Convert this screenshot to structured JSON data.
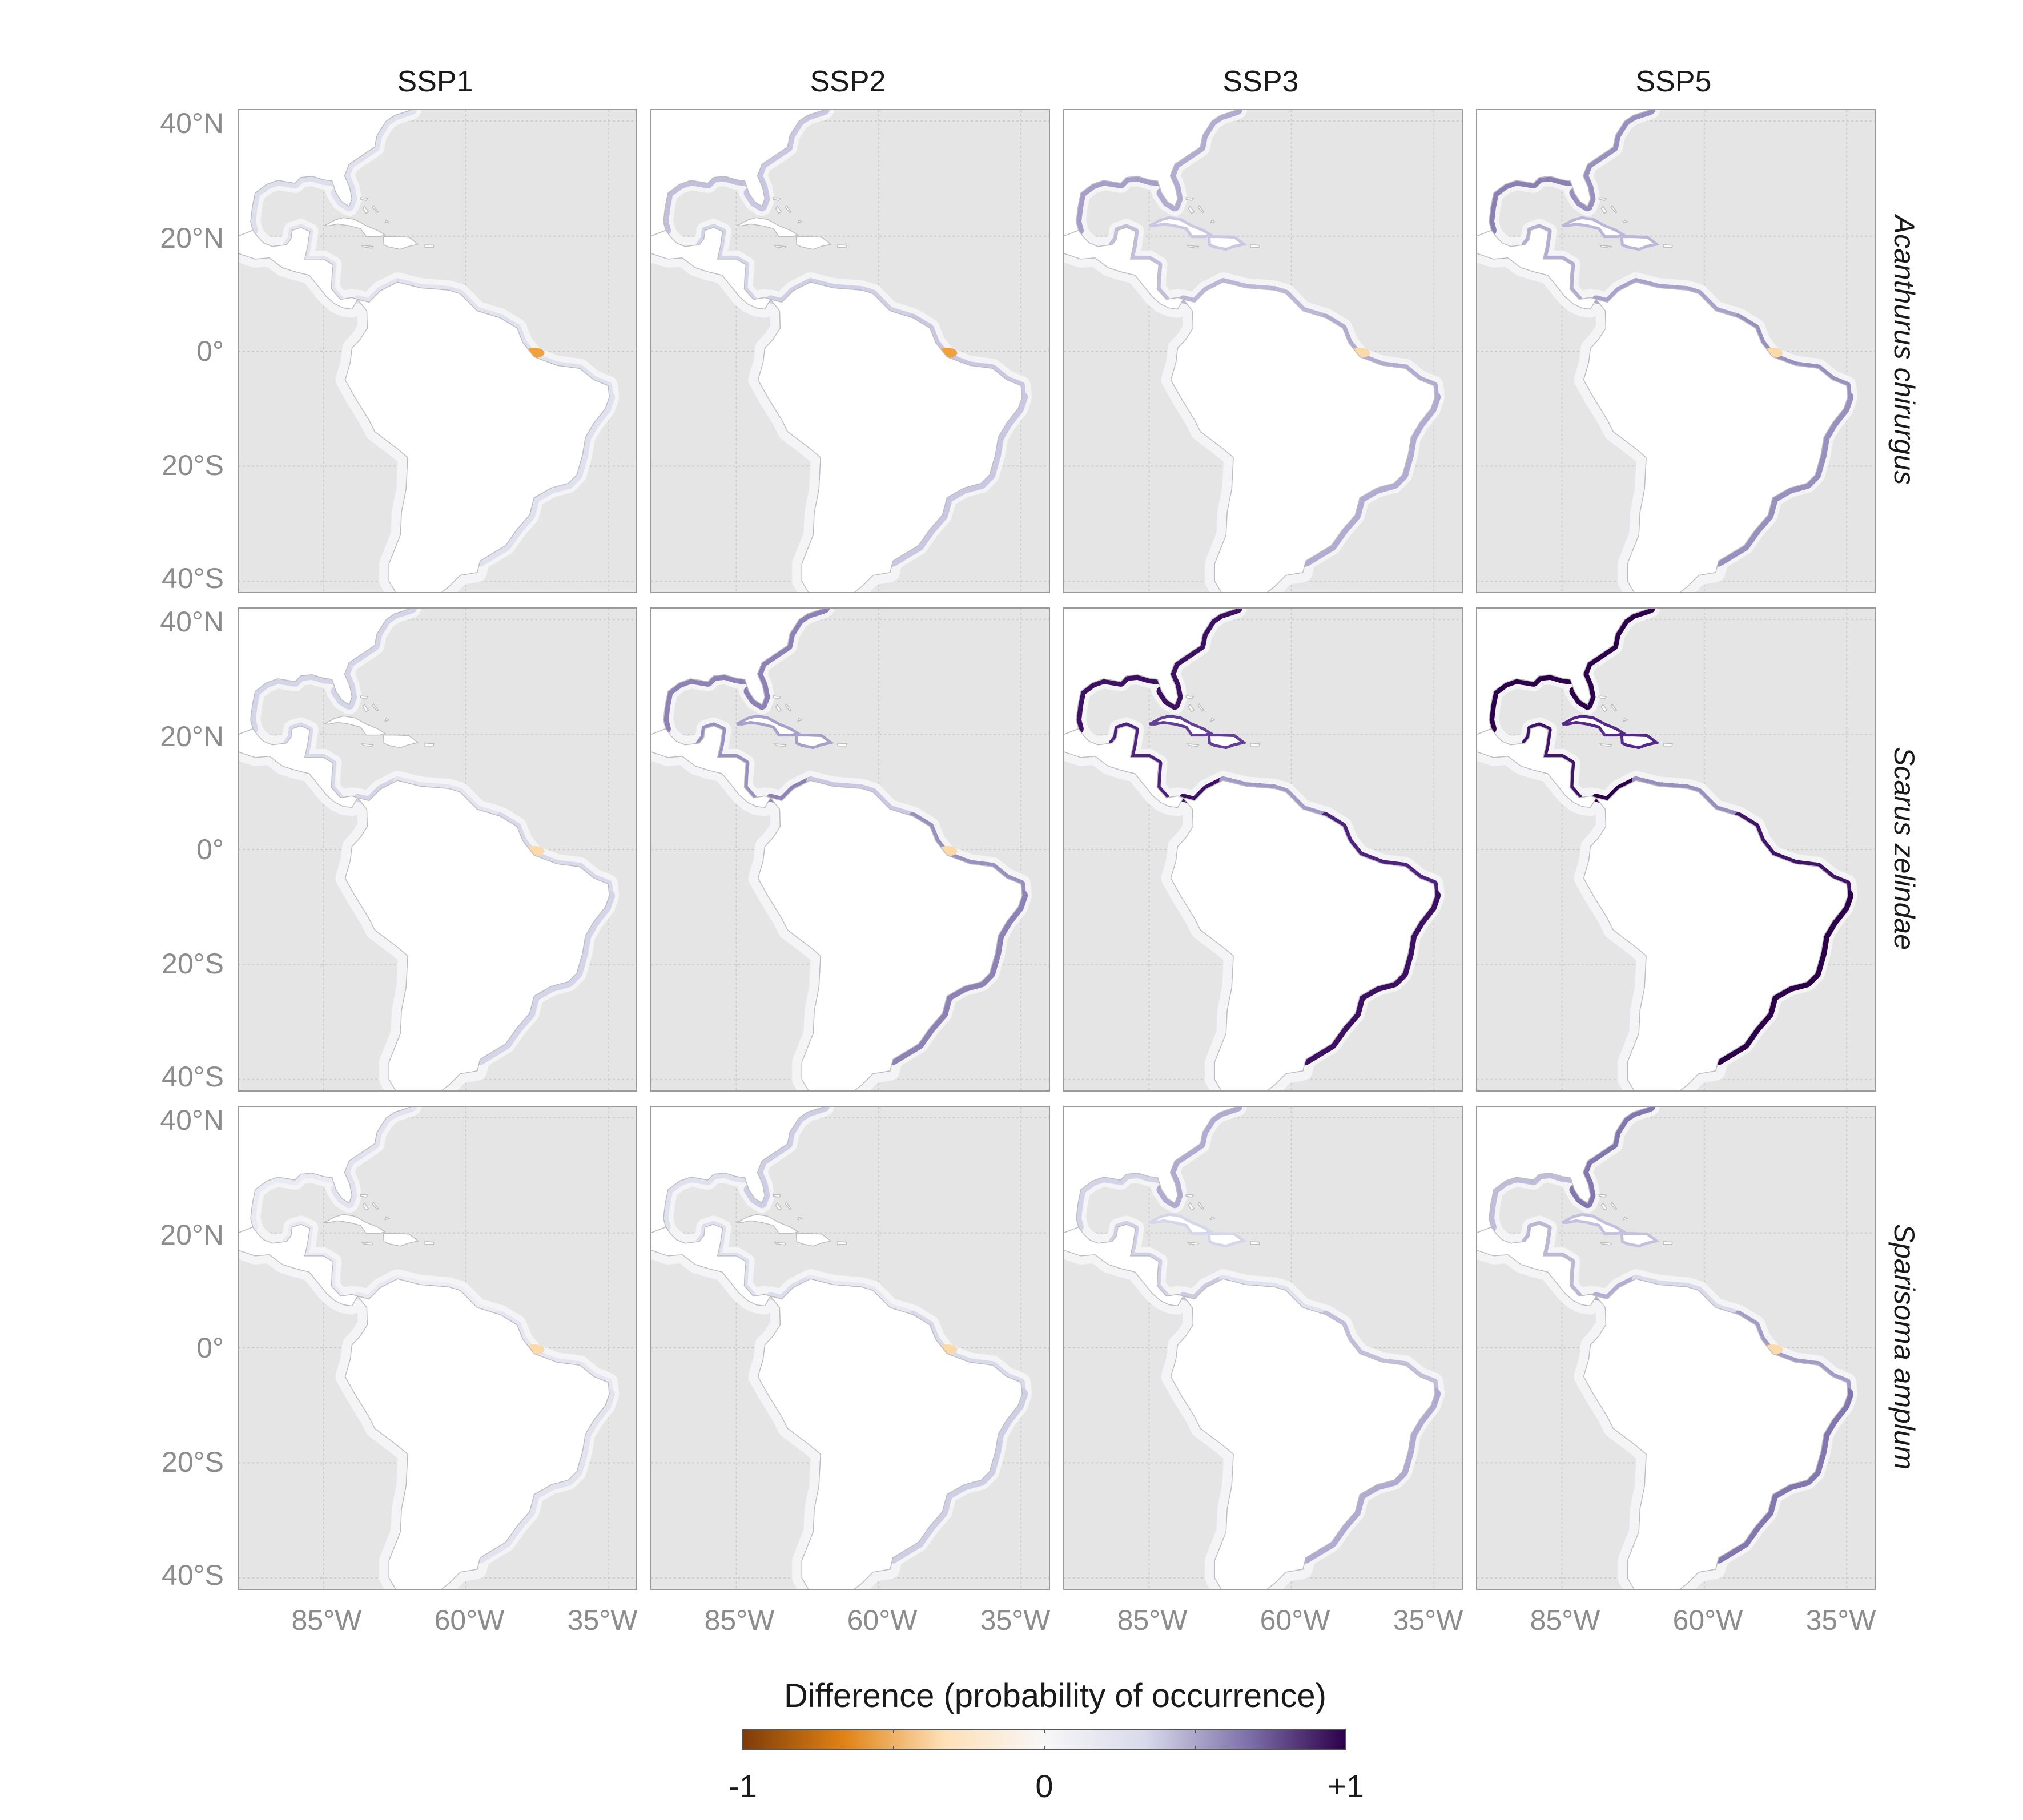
{
  "chart_data": {
    "type": "heatmap",
    "facet_columns": [
      "SSP1",
      "SSP2",
      "SSP3",
      "SSP5"
    ],
    "facet_rows": [
      "Acanthurus chirurgus",
      "Scarus zelindae",
      "Sparisoma amplum"
    ],
    "y_ticks": [
      "40°N",
      "20°N",
      "0°",
      "20°S",
      "40°S"
    ],
    "y_tick_values": [
      40,
      20,
      0,
      -20,
      -40
    ],
    "x_ticks": [
      "85°W",
      "60°W",
      "35°W"
    ],
    "x_tick_values": [
      -85,
      -60,
      -35
    ],
    "xlim": [
      -100,
      -30
    ],
    "ylim": [
      -42,
      42
    ],
    "grid": true,
    "legend": {
      "title": "Difference (probability of occurrence)",
      "labels": [
        "-1",
        "0",
        "+1"
      ],
      "values": [
        -1,
        0,
        1
      ],
      "placement": "bottom",
      "colors": [
        "#7f3b08",
        "#e08214",
        "#fee0b6",
        "#f7f7f7",
        "#d8daeb",
        "#8073ac",
        "#2d004b"
      ]
    },
    "colors": {
      "ocean": "#e5e5e5",
      "land": "#ffffff",
      "panel_border": "#9a9a9a",
      "grid": "#cccccc",
      "tick_text": "#8c8c8c"
    },
    "panels": [
      {
        "row": 0,
        "col": 0,
        "intensity": 0.18,
        "neg": 0.6
      },
      {
        "row": 0,
        "col": 1,
        "intensity": 0.35,
        "neg": 0.5
      },
      {
        "row": 0,
        "col": 2,
        "intensity": 0.5,
        "neg": 0.2
      },
      {
        "row": 0,
        "col": 3,
        "intensity": 0.62,
        "neg": 0.2
      },
      {
        "row": 1,
        "col": 0,
        "intensity": 0.22,
        "neg": 0.2
      },
      {
        "row": 1,
        "col": 1,
        "intensity": 0.55,
        "neg": 0.15
      },
      {
        "row": 1,
        "col": 2,
        "intensity": 0.92,
        "neg": 0.0
      },
      {
        "row": 1,
        "col": 3,
        "intensity": 1.0,
        "neg": 0.0
      },
      {
        "row": 2,
        "col": 0,
        "intensity": 0.14,
        "neg": 0.3
      },
      {
        "row": 2,
        "col": 1,
        "intensity": 0.28,
        "neg": 0.3
      },
      {
        "row": 2,
        "col": 2,
        "intensity": 0.45,
        "neg": 0.0
      },
      {
        "row": 2,
        "col": 3,
        "intensity": 0.65,
        "neg": 0.3
      }
    ]
  }
}
